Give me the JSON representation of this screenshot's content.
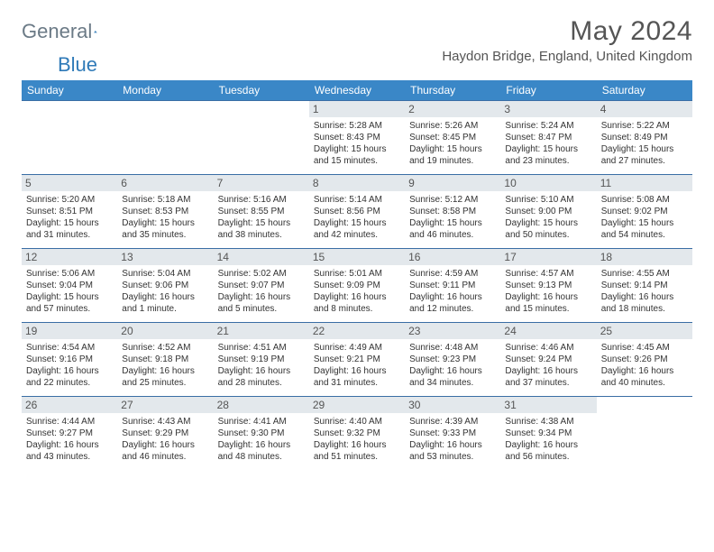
{
  "logo": {
    "word1": "General",
    "word2": "Blue"
  },
  "title": "May 2024",
  "location": "Haydon Bridge, England, United Kingdom",
  "colors": {
    "header_bg": "#3a87c7",
    "header_text": "#ffffff",
    "daynum_bg": "#e3e8ec",
    "border": "#3a6ea5",
    "logo_gray": "#6b7a86",
    "logo_blue": "#2f7ab8",
    "body_text": "#333333"
  },
  "dow": [
    "Sunday",
    "Monday",
    "Tuesday",
    "Wednesday",
    "Thursday",
    "Friday",
    "Saturday"
  ],
  "weeks": [
    [
      null,
      null,
      null,
      {
        "n": "1",
        "sr": "5:28 AM",
        "ss": "8:43 PM",
        "dl": "15 hours and 15 minutes."
      },
      {
        "n": "2",
        "sr": "5:26 AM",
        "ss": "8:45 PM",
        "dl": "15 hours and 19 minutes."
      },
      {
        "n": "3",
        "sr": "5:24 AM",
        "ss": "8:47 PM",
        "dl": "15 hours and 23 minutes."
      },
      {
        "n": "4",
        "sr": "5:22 AM",
        "ss": "8:49 PM",
        "dl": "15 hours and 27 minutes."
      }
    ],
    [
      {
        "n": "5",
        "sr": "5:20 AM",
        "ss": "8:51 PM",
        "dl": "15 hours and 31 minutes."
      },
      {
        "n": "6",
        "sr": "5:18 AM",
        "ss": "8:53 PM",
        "dl": "15 hours and 35 minutes."
      },
      {
        "n": "7",
        "sr": "5:16 AM",
        "ss": "8:55 PM",
        "dl": "15 hours and 38 minutes."
      },
      {
        "n": "8",
        "sr": "5:14 AM",
        "ss": "8:56 PM",
        "dl": "15 hours and 42 minutes."
      },
      {
        "n": "9",
        "sr": "5:12 AM",
        "ss": "8:58 PM",
        "dl": "15 hours and 46 minutes."
      },
      {
        "n": "10",
        "sr": "5:10 AM",
        "ss": "9:00 PM",
        "dl": "15 hours and 50 minutes."
      },
      {
        "n": "11",
        "sr": "5:08 AM",
        "ss": "9:02 PM",
        "dl": "15 hours and 54 minutes."
      }
    ],
    [
      {
        "n": "12",
        "sr": "5:06 AM",
        "ss": "9:04 PM",
        "dl": "15 hours and 57 minutes."
      },
      {
        "n": "13",
        "sr": "5:04 AM",
        "ss": "9:06 PM",
        "dl": "16 hours and 1 minute."
      },
      {
        "n": "14",
        "sr": "5:02 AM",
        "ss": "9:07 PM",
        "dl": "16 hours and 5 minutes."
      },
      {
        "n": "15",
        "sr": "5:01 AM",
        "ss": "9:09 PM",
        "dl": "16 hours and 8 minutes."
      },
      {
        "n": "16",
        "sr": "4:59 AM",
        "ss": "9:11 PM",
        "dl": "16 hours and 12 minutes."
      },
      {
        "n": "17",
        "sr": "4:57 AM",
        "ss": "9:13 PM",
        "dl": "16 hours and 15 minutes."
      },
      {
        "n": "18",
        "sr": "4:55 AM",
        "ss": "9:14 PM",
        "dl": "16 hours and 18 minutes."
      }
    ],
    [
      {
        "n": "19",
        "sr": "4:54 AM",
        "ss": "9:16 PM",
        "dl": "16 hours and 22 minutes."
      },
      {
        "n": "20",
        "sr": "4:52 AM",
        "ss": "9:18 PM",
        "dl": "16 hours and 25 minutes."
      },
      {
        "n": "21",
        "sr": "4:51 AM",
        "ss": "9:19 PM",
        "dl": "16 hours and 28 minutes."
      },
      {
        "n": "22",
        "sr": "4:49 AM",
        "ss": "9:21 PM",
        "dl": "16 hours and 31 minutes."
      },
      {
        "n": "23",
        "sr": "4:48 AM",
        "ss": "9:23 PM",
        "dl": "16 hours and 34 minutes."
      },
      {
        "n": "24",
        "sr": "4:46 AM",
        "ss": "9:24 PM",
        "dl": "16 hours and 37 minutes."
      },
      {
        "n": "25",
        "sr": "4:45 AM",
        "ss": "9:26 PM",
        "dl": "16 hours and 40 minutes."
      }
    ],
    [
      {
        "n": "26",
        "sr": "4:44 AM",
        "ss": "9:27 PM",
        "dl": "16 hours and 43 minutes."
      },
      {
        "n": "27",
        "sr": "4:43 AM",
        "ss": "9:29 PM",
        "dl": "16 hours and 46 minutes."
      },
      {
        "n": "28",
        "sr": "4:41 AM",
        "ss": "9:30 PM",
        "dl": "16 hours and 48 minutes."
      },
      {
        "n": "29",
        "sr": "4:40 AM",
        "ss": "9:32 PM",
        "dl": "16 hours and 51 minutes."
      },
      {
        "n": "30",
        "sr": "4:39 AM",
        "ss": "9:33 PM",
        "dl": "16 hours and 53 minutes."
      },
      {
        "n": "31",
        "sr": "4:38 AM",
        "ss": "9:34 PM",
        "dl": "16 hours and 56 minutes."
      },
      null
    ]
  ],
  "labels": {
    "sunrise": "Sunrise:",
    "sunset": "Sunset:",
    "daylight": "Daylight:"
  }
}
